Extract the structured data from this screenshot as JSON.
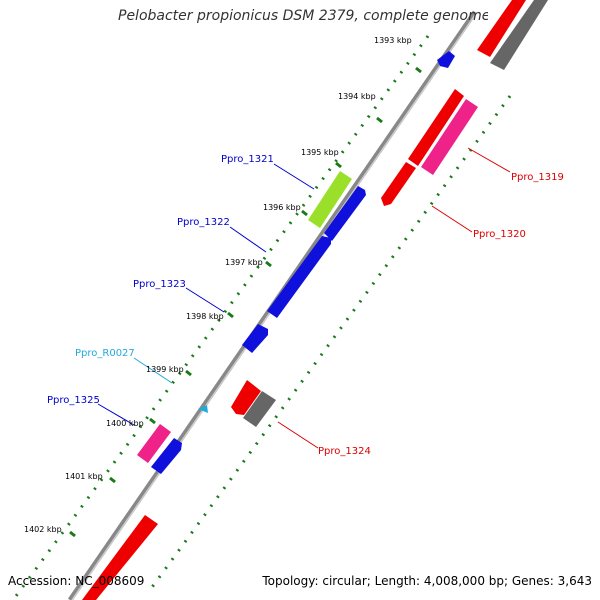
{
  "title": "Pelobacter propionicus DSM 2379, complete genome",
  "footer": {
    "accession": "Accession: NC_008609",
    "topology": "Topology: circular; Length: 4,008,000 bp; Genes: 3,643"
  },
  "colors": {
    "background": "#ffffff",
    "backbone": "#888888",
    "backbone_highlight": "#cccccc",
    "tick_dots": "#1a7a1a",
    "forward_cds": "#1010dd",
    "reverse_cds": "#ee0000",
    "pseudo_or_other": "#666666",
    "rna_forward": "#9ae02a",
    "rna_magenta": "#ee2288",
    "trna_label": "#22aadd",
    "label_blue": "#0000cc",
    "label_red": "#dd0000"
  },
  "scale_ticks": [
    {
      "label": "1393 kbp",
      "kbp": 1393
    },
    {
      "label": "1394 kbp",
      "kbp": 1394
    },
    {
      "label": "1395 kbp",
      "kbp": 1395
    },
    {
      "label": "1396 kbp",
      "kbp": 1396
    },
    {
      "label": "1397 kbp",
      "kbp": 1397
    },
    {
      "label": "1398 kbp",
      "kbp": 1398
    },
    {
      "label": "1399 kbp",
      "kbp": 1399
    },
    {
      "label": "1400 kbp",
      "kbp": 1400
    },
    {
      "label": "1401 kbp",
      "kbp": 1401
    },
    {
      "label": "1402 kbp",
      "kbp": 1402
    }
  ],
  "gene_labels": [
    {
      "text": "Ppro_1321",
      "color": "#0000cc"
    },
    {
      "text": "Ppro_1322",
      "color": "#0000cc"
    },
    {
      "text": "Ppro_1323",
      "color": "#0000cc"
    },
    {
      "text": "Ppro_R0027",
      "color": "#22aadd"
    },
    {
      "text": "Ppro_1325",
      "color": "#0000cc"
    },
    {
      "text": "Ppro_1319",
      "color": "#dd0000"
    },
    {
      "text": "Ppro_1320",
      "color": "#dd0000"
    },
    {
      "text": "Ppro_1324",
      "color": "#dd0000"
    }
  ]
}
